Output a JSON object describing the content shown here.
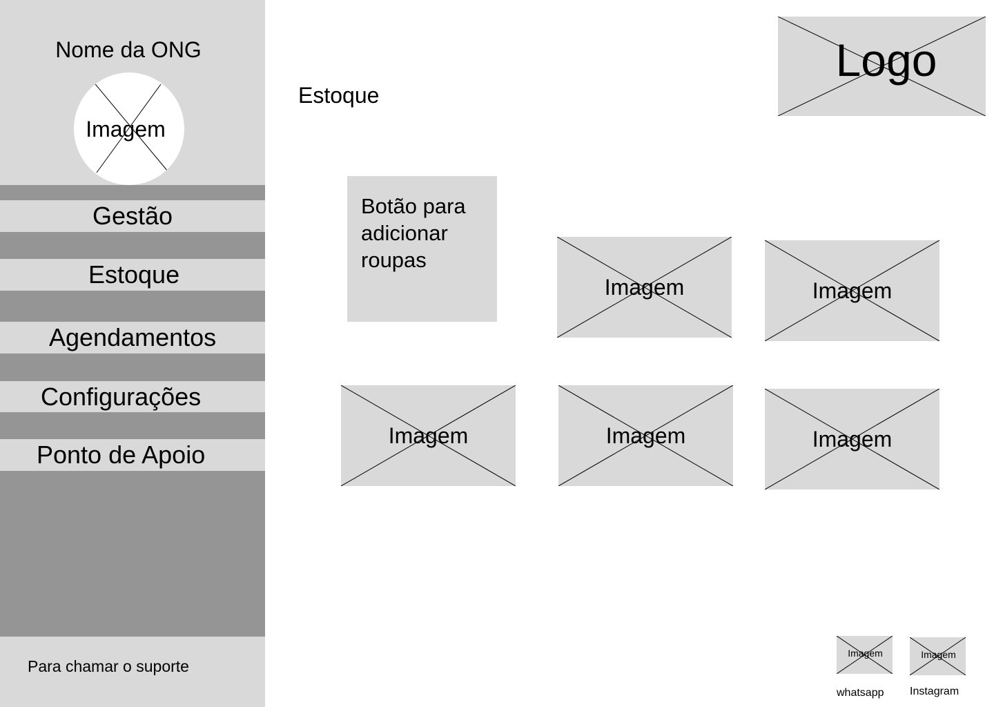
{
  "sidebar": {
    "org_name": "Nome da ONG",
    "avatar_label": "Imagem",
    "items": [
      {
        "label": "Gestão"
      },
      {
        "label": "Estoque"
      },
      {
        "label": "Agendamentos"
      },
      {
        "label": "Configurações"
      },
      {
        "label": "Ponto de Apoio"
      }
    ],
    "support_text": "Para chamar o suporte"
  },
  "main": {
    "page_title": "Estoque",
    "logo_label": "Logo",
    "add_button_label": "Botão para adicionar roupas",
    "items": [
      {
        "label": "Imagem"
      },
      {
        "label": "Imagem"
      },
      {
        "label": "Imagem"
      },
      {
        "label": "Imagem"
      },
      {
        "label": "Imagem"
      }
    ]
  },
  "footer": {
    "whatsapp": {
      "image_label": "Imagem",
      "caption": "whatsapp"
    },
    "instagram": {
      "image_label": "Imagem",
      "caption": "Instagram"
    }
  },
  "colors": {
    "placeholder_gray": "#d9d9d9",
    "separator_gray": "#959595",
    "background": "#ffffff"
  }
}
